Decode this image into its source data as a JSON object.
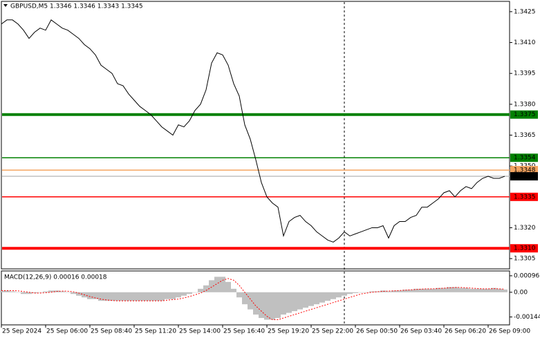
{
  "chart_data": [
    {
      "type": "line",
      "title": "GBPUSD,M5  1.3346 1.3346 1.3343 1.3345",
      "color": "#000000",
      "values": [
        1.3419,
        1.3421,
        1.3421,
        1.3419,
        1.3416,
        1.3412,
        1.3415,
        1.3417,
        1.3416,
        1.3421,
        1.3419,
        1.3417,
        1.3416,
        1.3414,
        1.3412,
        1.3409,
        1.3407,
        1.3404,
        1.3399,
        1.3397,
        1.3395,
        1.339,
        1.3389,
        1.3385,
        1.3382,
        1.3379,
        1.3377,
        1.3375,
        1.3372,
        1.3369,
        1.3367,
        1.3365,
        1.337,
        1.3369,
        1.3372,
        1.3377,
        1.338,
        1.3387,
        1.34,
        1.3405,
        1.3404,
        1.3399,
        1.339,
        1.3384,
        1.337,
        1.3363,
        1.3353,
        1.3342,
        1.3335,
        1.3332,
        1.333,
        1.3316,
        1.3323,
        1.3325,
        1.3326,
        1.3323,
        1.3321,
        1.3318,
        1.3316,
        1.3314,
        1.3313,
        1.3315,
        1.3318,
        1.3316,
        1.3317,
        1.3318,
        1.3319,
        1.332,
        1.332,
        1.3321,
        1.3315,
        1.3321,
        1.3323,
        1.3323,
        1.3325,
        1.3326,
        1.333,
        1.333,
        1.3332,
        1.3334,
        1.3337,
        1.3338,
        1.3335,
        1.3338,
        1.334,
        1.3339,
        1.3342,
        1.3344,
        1.3345,
        1.3344,
        1.3344,
        1.3345
      ],
      "xlim": [
        0,
        92
      ],
      "xticks": [
        {
          "value": 0,
          "label": "25 Sep 2024"
        },
        {
          "value": 8,
          "label": "25 Sep 06:00"
        },
        {
          "value": 16,
          "label": "25 Sep 08:40"
        },
        {
          "value": 24,
          "label": "25 Sep 11:20"
        },
        {
          "value": 32,
          "label": "25 Sep 14:00"
        },
        {
          "value": 40,
          "label": "25 Sep 16:40"
        },
        {
          "value": 48,
          "label": "25 Sep 19:20"
        },
        {
          "value": 56,
          "label": "25 Sep 22:00"
        },
        {
          "value": 64,
          "label": "26 Sep 00:50"
        },
        {
          "value": 72,
          "label": "26 Sep 03:40"
        },
        {
          "value": 80,
          "label": "26 Sep 06:20"
        },
        {
          "value": 88,
          "label": "26 Sep 09:00"
        }
      ],
      "separator_x": 62,
      "ylim": [
        1.33,
        1.343
      ],
      "yticks": [
        1.3305,
        {
          "value": 1.332,
          "label": "1.3320"
        },
        {
          "value": 1.335,
          "label": "1.3350"
        },
        1.3365,
        {
          "value": 1.338,
          "label": "1.3380"
        },
        1.3395,
        {
          "value": 1.341,
          "label": "1.3410"
        },
        1.3425
      ],
      "levels": [
        {
          "value": 1.3375,
          "label": "1.3375",
          "color": "#008000",
          "style": "thick"
        },
        {
          "value": 1.3354,
          "label": "1.3354",
          "color": "#008000",
          "style": "thin"
        },
        {
          "value": 1.3348,
          "label": "1.3348",
          "color": "#f4a460",
          "style": "thin"
        },
        {
          "value": 1.3345,
          "label": "1.3345",
          "color": "#c0c0c0",
          "label_color": "#000000",
          "style": "thin"
        },
        {
          "value": 1.3335,
          "label": "1.3335",
          "color": "#ff0000",
          "style": "thin"
        },
        {
          "value": 1.331,
          "label": "1.3310",
          "color": "#ff0000",
          "style": "thick"
        }
      ]
    },
    {
      "type": "macd",
      "title": "MACD(12,26,9) 0.00016 0.00018",
      "hist_color": "#c0c0c0",
      "signal_color": "#ff0000",
      "histogram": [
        0.0001,
        0.0001,
        5e-05,
        0,
        -0.0001,
        -0.0001,
        -5e-05,
        0,
        5e-05,
        0.0001,
        0.0001,
        5e-05,
        0,
        -0.0001,
        -0.0002,
        -0.0003,
        -0.0004,
        -0.0004,
        -0.0005,
        -0.0005,
        -0.0005,
        -0.0005,
        -0.0005,
        -0.0005,
        -0.0005,
        -0.0005,
        -0.0005,
        -0.0005,
        -0.0005,
        -0.0005,
        -0.0004,
        -0.0004,
        -0.0003,
        -0.0002,
        -0.0001,
        0,
        0.0002,
        0.0004,
        0.0007,
        0.0009,
        0.0009,
        0.0006,
        0.0002,
        -0.0003,
        -0.0007,
        -0.001,
        -0.0013,
        -0.0015,
        -0.0016,
        -0.0016,
        -0.0015,
        -0.0013,
        -0.0012,
        -0.0011,
        -0.001,
        -0.0009,
        -0.0008,
        -0.0007,
        -0.0006,
        -0.0005,
        -0.0004,
        -0.0003,
        -0.0002,
        -0.0001,
        -5e-05,
        0,
        0,
        5e-05,
        5e-05,
        0.0001,
        5e-05,
        0.0001,
        0.0001,
        0.00015,
        0.00015,
        0.0002,
        0.0002,
        0.0002,
        0.0002,
        0.00025,
        0.00025,
        0.0003,
        0.0003,
        0.00025,
        0.00025,
        0.0002,
        0.0002,
        0.0002,
        0.0002,
        0.00025,
        0.0002,
        0.00016
      ],
      "signal": [
        0.0001,
        0.0001,
        0.0001,
        8e-05,
        4e-05,
        0,
        -5e-05,
        -5e-05,
        -3e-05,
        0,
        5e-05,
        7e-05,
        6e-05,
        3e-05,
        -5e-05,
        -0.00015,
        -0.00025,
        -0.00033,
        -0.0004,
        -0.00045,
        -0.00048,
        -0.0005,
        -0.0005,
        -0.0005,
        -0.0005,
        -0.0005,
        -0.0005,
        -0.0005,
        -0.0005,
        -0.0005,
        -0.00046,
        -0.00043,
        -0.0004,
        -0.00033,
        -0.00025,
        -0.00015,
        -5e-05,
        0.0001,
        0.0003,
        0.0005,
        0.0007,
        0.0008,
        0.0007,
        0.0004,
        0,
        -0.0004,
        -0.0008,
        -0.0011,
        -0.0014,
        -0.0016,
        -0.0016,
        -0.0015,
        -0.0014,
        -0.0013,
        -0.0012,
        -0.0011,
        -0.001,
        -0.0009,
        -0.0008,
        -0.0007,
        -0.0006,
        -0.0005,
        -0.0004,
        -0.0003,
        -0.0002,
        -0.0001,
        -5e-05,
        0,
        3e-05,
        5e-05,
        7e-05,
        8e-05,
        0.0001,
        0.00012,
        0.00014,
        0.00016,
        0.00018,
        0.0002,
        0.0002,
        0.00022,
        0.00024,
        0.00026,
        0.00028,
        0.00028,
        0.00026,
        0.00024,
        0.00022,
        0.0002,
        0.0002,
        0.00021,
        0.0002,
        0.00018
      ],
      "ylim": [
        -0.0019,
        0.00124
      ],
      "yticks": [
        0.00096,
        {
          "value": 0,
          "label": "0.00"
        },
        -0.00144
      ]
    }
  ]
}
